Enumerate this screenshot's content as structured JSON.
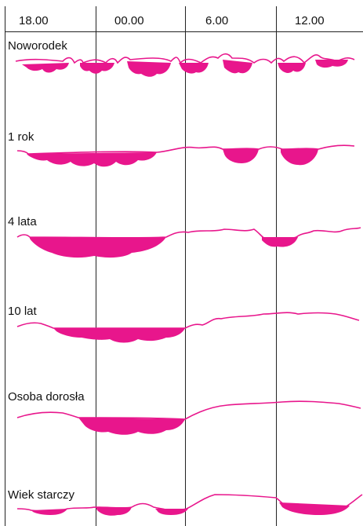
{
  "colors": {
    "sleep_fill": "#e8168c",
    "line": "#e8168c",
    "grid": "#222222"
  },
  "time_axis": {
    "labels": [
      "18.00",
      "00.00",
      "6.00",
      "12.00"
    ]
  },
  "rows": [
    {
      "label": "Noworodek"
    },
    {
      "label": "1 rok"
    },
    {
      "label": "4 lata"
    },
    {
      "label": "10 lat"
    },
    {
      "label": "Osoba dorosła"
    },
    {
      "label": "Wiek starczy"
    }
  ]
}
